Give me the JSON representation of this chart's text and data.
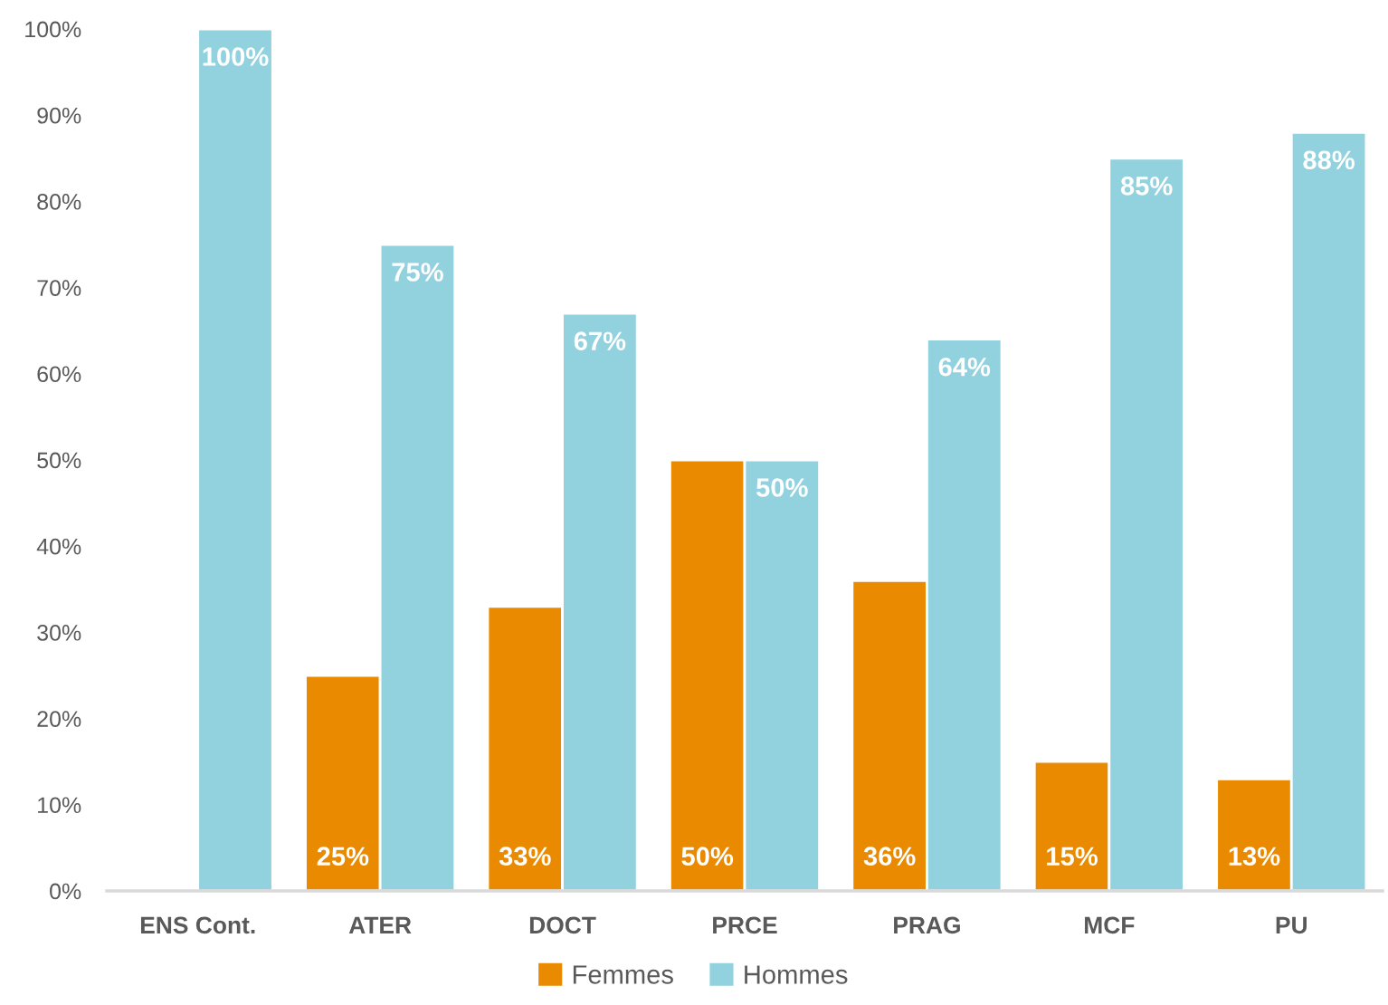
{
  "chart_data": {
    "type": "bar",
    "categories": [
      "ENS Cont.",
      "ATER",
      "DOCT",
      "PRCE",
      "PRAG",
      "MCF",
      "PU"
    ],
    "series": [
      {
        "name": "Femmes",
        "color": "#e98a00",
        "values": [
          null,
          25,
          33,
          50,
          36,
          15,
          13
        ],
        "value_labels": [
          null,
          "25%",
          "33%",
          "50%",
          "36%",
          "15%",
          "13%"
        ]
      },
      {
        "name": "Hommes",
        "color": "#92d1de",
        "values": [
          100,
          75,
          67,
          50,
          64,
          85,
          88
        ],
        "value_labels": [
          "100%",
          "75%",
          "67%",
          "50%",
          "64%",
          "85%",
          "88%"
        ]
      }
    ],
    "ylim": [
      0,
      100
    ],
    "yticks": [
      {
        "value": 0,
        "label": "0%"
      },
      {
        "value": 10,
        "label": "10%"
      },
      {
        "value": 20,
        "label": "20%"
      },
      {
        "value": 30,
        "label": "30%"
      },
      {
        "value": 40,
        "label": "40%"
      },
      {
        "value": 50,
        "label": "50%"
      },
      {
        "value": 60,
        "label": "60%"
      },
      {
        "value": 70,
        "label": "70%"
      },
      {
        "value": 80,
        "label": "80%"
      },
      {
        "value": 90,
        "label": "90%"
      },
      {
        "value": 100,
        "label": "100%"
      }
    ],
    "grid": false,
    "legend": "bottom"
  }
}
